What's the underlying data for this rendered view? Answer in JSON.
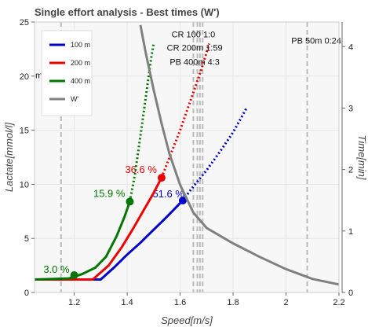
{
  "chart_data": {
    "type": "line",
    "title": "Single effort analysis - Best times (W')",
    "xlabel": "Speed[m/s]",
    "ylabel": "Lactate[mmol/l]",
    "y2label": "Time[min]",
    "xlim": [
      1.05,
      2.2
    ],
    "ylim": [
      0,
      25
    ],
    "y2lim": [
      0,
      4.4
    ],
    "xticks": [
      "1.2",
      "1.4",
      "1.6",
      "1.8",
      "2",
      "2.2"
    ],
    "xtick_values": [
      1.2,
      1.4,
      1.6,
      1.8,
      2.0,
      2.2
    ],
    "yticks": [
      "0",
      "5",
      "10",
      "15",
      "20",
      "25"
    ],
    "ytick_values": [
      0,
      5,
      10,
      15,
      20,
      25
    ],
    "y2ticks": [
      "0",
      "1",
      "2",
      "3",
      "4"
    ],
    "y2tick_values": [
      0,
      1,
      2,
      3,
      4
    ],
    "grid": true,
    "legend": {
      "placement": "top-left",
      "entries": [
        {
          "label": "100 m",
          "color": "#0000cc"
        },
        {
          "label": "200 m",
          "color": "#ee0000"
        },
        {
          "label": "400 m",
          "color": "#007700"
        },
        {
          "label": "W'",
          "color": "#808080"
        }
      ]
    },
    "series": [
      {
        "name": "100 m",
        "color": "#0000cc",
        "solid": {
          "x": [
            1.05,
            1.3,
            1.35,
            1.4,
            1.45,
            1.5,
            1.55,
            1.61
          ],
          "y": [
            1.2,
            1.2,
            2.3,
            3.5,
            4.6,
            5.8,
            7.0,
            8.5
          ]
        },
        "dotted": {
          "x": [
            1.61,
            1.65,
            1.7,
            1.75,
            1.8,
            1.85
          ],
          "y": [
            8.5,
            9.8,
            11.3,
            13.0,
            14.8,
            17.0
          ]
        },
        "marker": {
          "x": 1.61,
          "y": 8.5,
          "label": "51.6 %"
        }
      },
      {
        "name": "200 m",
        "color": "#ee0000",
        "solid": {
          "x": [
            1.05,
            1.27,
            1.33,
            1.38,
            1.42,
            1.46,
            1.5,
            1.53
          ],
          "y": [
            1.2,
            1.2,
            2.5,
            4.2,
            5.8,
            7.5,
            9.2,
            10.6
          ]
        },
        "dotted": {
          "x": [
            1.53,
            1.56,
            1.6,
            1.64,
            1.68,
            1.71
          ],
          "y": [
            10.6,
            12.5,
            15.0,
            17.8,
            20.6,
            23.0
          ]
        },
        "marker": {
          "x": 1.53,
          "y": 10.6,
          "label": "36.6 %"
        }
      },
      {
        "name": "400 m",
        "color": "#007700",
        "solid": {
          "x": [
            1.05,
            1.18,
            1.23,
            1.28,
            1.32,
            1.36,
            1.39,
            1.41
          ],
          "y": [
            1.2,
            1.3,
            1.7,
            2.3,
            3.3,
            5.2,
            7.0,
            8.4
          ]
        },
        "dotted": {
          "x": [
            1.41,
            1.43,
            1.45,
            1.47,
            1.49,
            1.5
          ],
          "y": [
            8.4,
            11.0,
            14.5,
            18.0,
            21.6,
            23.0
          ]
        },
        "marker": {
          "x": 1.41,
          "y": 8.4,
          "label": "15.9 %"
        },
        "marker2": {
          "x": 1.2,
          "y": 1.6,
          "label": "3.0 %"
        }
      },
      {
        "name": "W'",
        "color": "#808080",
        "axis": "right",
        "x": [
          1.45,
          1.47,
          1.5,
          1.53,
          1.56,
          1.6,
          1.65,
          1.7,
          1.8,
          1.9,
          2.0,
          2.1,
          2.2
        ],
        "y": [
          4.35,
          3.9,
          3.3,
          2.75,
          2.25,
          1.75,
          1.3,
          1.05,
          0.8,
          0.58,
          0.38,
          0.22,
          0.13
        ]
      }
    ],
    "reference_lines": [
      {
        "x": 1.15,
        "label": "PB 50m 0:24"
      },
      {
        "x": 1.65,
        "label": ""
      },
      {
        "x": 1.665,
        "label": ""
      },
      {
        "x": 1.675,
        "label": ""
      },
      {
        "x": 1.685,
        "label": ""
      },
      {
        "x": 2.08,
        "label": ""
      }
    ],
    "annotations": [
      {
        "text": "CR 100 1:0",
        "x": 1.65,
        "y2": 4.15
      },
      {
        "text": "CR 200m 1:59",
        "x": 1.655,
        "y2": 3.93
      },
      {
        "text": "PB 400m 4:3",
        "x": 1.655,
        "y2": 3.7
      },
      {
        "text": "PB 50m 0:24",
        "x": 2.02,
        "y2": 4.05
      }
    ],
    "left_edge_text": "m"
  }
}
